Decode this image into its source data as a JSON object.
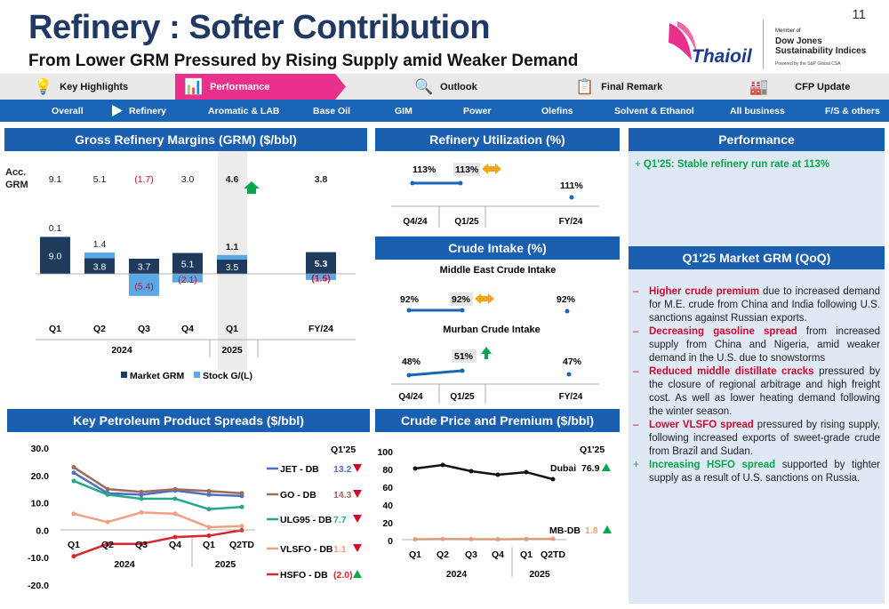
{
  "header": {
    "title": "Refinery : Softer Contribution",
    "subtitle": "From Lower GRM Pressured by Rising Supply amid Weaker Demand",
    "page": "11"
  },
  "logo": {
    "brand": "Thaioil",
    "member": "Member of",
    "dj": "Dow Jones",
    "dj2": "Sustainability Indices",
    "powered": "Powered by the S&P Global CSA"
  },
  "tabs": [
    {
      "label": "Key Highlights",
      "icon": "lightbulb-icon"
    },
    {
      "label": "Performance",
      "icon": "bar-chart-icon"
    },
    {
      "label": "Outlook",
      "icon": "magnifier-icon"
    },
    {
      "label": "Final Remark",
      "icon": "clipboard-icon"
    },
    {
      "label": "CFP Update",
      "icon": "factory-icon"
    }
  ],
  "subtabs": [
    "Overall",
    "Refinery",
    "Aromatic & LAB",
    "Base Oil",
    "GIM",
    "Power",
    "Olefins",
    "Solvent & Ethanol",
    "All business",
    "F/S & others"
  ],
  "grm": {
    "title": "Gross Refinery Margins (GRM) ($/bbl)",
    "acc_label": "Acc.",
    "acc_label2": "GRM",
    "acc": [
      "9.1",
      "5.1",
      "(1.7)",
      "3.0",
      "4.6",
      "3.8"
    ],
    "categories": [
      "Q1",
      "Q2",
      "Q3",
      "Q4",
      "Q1",
      "FY/24"
    ],
    "years": [
      "2024",
      "2025"
    ],
    "market": [
      9.0,
      3.8,
      3.7,
      5.1,
      3.5,
      5.3
    ],
    "stock": [
      0.1,
      1.4,
      -5.4,
      -2.1,
      1.1,
      -1.5
    ],
    "market_labels": [
      "9.0",
      "3.8",
      "3.7",
      "5.1",
      "3.5",
      "5.3"
    ],
    "stock_labels": [
      "0.1",
      "1.4",
      "(5.4)",
      "(2.1)",
      "1.1",
      "(1.5)"
    ],
    "legend": [
      "Market GRM",
      "Stock G/(L)"
    ]
  },
  "util": {
    "title": "Refinery Utilization (%)",
    "values": [
      "113%",
      "113%",
      "111%"
    ],
    "cats": [
      "Q4/24",
      "Q1/25",
      "FY/24"
    ]
  },
  "crude": {
    "title": "Crude Intake (%)",
    "me_title": "Middle East Crude Intake",
    "me": [
      "92%",
      "92%",
      "92%"
    ],
    "mu_title": "Murban Crude Intake",
    "mu": [
      "48%",
      "51%",
      "47%"
    ],
    "cats": [
      "Q4/24",
      "Q1/25",
      "FY/24"
    ]
  },
  "perf": {
    "title": "Performance",
    "bullet": "Q1'25: Stable refinery run rate at 113%"
  },
  "market_grm": {
    "title": "Q1'25 Market GRM (QoQ)",
    "items": [
      {
        "sign": "–",
        "hl": "Higher crude premium",
        "rest": " due to increased demand for M.E. crude from China and India following U.S. sanctions against Russian exports.",
        "c": "r"
      },
      {
        "sign": "–",
        "hl": "Decreasing gasoline spread",
        "rest": " from increased supply from China and Nigeria, amid weaker demand in the U.S. due to snowstorms",
        "c": "r"
      },
      {
        "sign": "–",
        "hl": "Reduced middle distillate cracks",
        "rest": " pressured by the closure of regional arbitrage and high freight cost. As well as lower heating demand following the winter season.",
        "c": "r"
      },
      {
        "sign": "–",
        "hl": "Lower VLSFO spread",
        "rest": " pressured by rising supply, following increased exports of sweet-grade crude from Brazil and Sudan.",
        "c": "r"
      },
      {
        "sign": "+",
        "hl": "Increasing HSFO spread",
        "rest": " supported by tighter supply as a result of U.S. sanctions on Russia.",
        "c": "g"
      }
    ]
  },
  "spreads": {
    "title": "Key Petroleum Product Spreads ($/bbl)",
    "q_label": "Q1'25",
    "yticks": [
      "30.0",
      "20.0",
      "10.0",
      "0.0",
      "-10.0",
      "-20.0"
    ],
    "cats": [
      "Q1",
      "Q2",
      "Q3",
      "Q4",
      "Q1",
      "Q2TD"
    ],
    "years": [
      "2024",
      "2025"
    ],
    "series": [
      {
        "name": "JET - DB",
        "value": "13.2",
        "dir": "down",
        "color": "#4a6fc4",
        "data": [
          21,
          13.5,
          13,
          14.5,
          13,
          12.5
        ]
      },
      {
        "name": "GO - DB",
        "value": "14.3",
        "dir": "down",
        "color": "#9c6b60",
        "data": [
          23,
          15,
          14,
          15,
          14.3,
          13.5
        ]
      },
      {
        "name": "ULG95 - DB",
        "value": "7.7",
        "dir": "down",
        "color": "#27a78a",
        "data": [
          18,
          13,
          11.5,
          11.5,
          7.7,
          8.5
        ]
      },
      {
        "name": "VLSFO - DB",
        "value": "1.1",
        "dir": "down",
        "color": "#f1a07f",
        "data": [
          6,
          3,
          6.5,
          6,
          1.1,
          1.5
        ]
      },
      {
        "name": "HSFO - DB",
        "value": "(2.0)",
        "dir": "up",
        "color": "#d9262c",
        "data": [
          -9.5,
          -5,
          -5,
          -2.5,
          -2,
          0
        ]
      }
    ]
  },
  "crudeprice": {
    "title": "Crude Price and Premium ($/bbl)",
    "q_label": "Q1'25",
    "yticks": [
      "100",
      "80",
      "60",
      "40",
      "20",
      "0"
    ],
    "cats": [
      "Q1",
      "Q2",
      "Q3",
      "Q4",
      "Q1",
      "Q2TD"
    ],
    "years": [
      "2024",
      "2025"
    ],
    "series": [
      {
        "name": "Dubai",
        "value": "76.9",
        "dir": "up",
        "color": "#111",
        "data": [
          81,
          85,
          78,
          74,
          76.9,
          69
        ]
      },
      {
        "name": "MB-DB",
        "value": "1.8",
        "dir": "up",
        "color": "#f0a070",
        "data": [
          1.5,
          1.8,
          1.6,
          1.5,
          1.8,
          2.0
        ]
      }
    ]
  },
  "colors": {
    "navy": "#1f3864",
    "blue": "#1b5fb0",
    "pink": "#e8308c",
    "red": "#d2092f",
    "green": "#0aa64a",
    "market": "#1e3a5c",
    "stock": "#5aa9e6"
  }
}
